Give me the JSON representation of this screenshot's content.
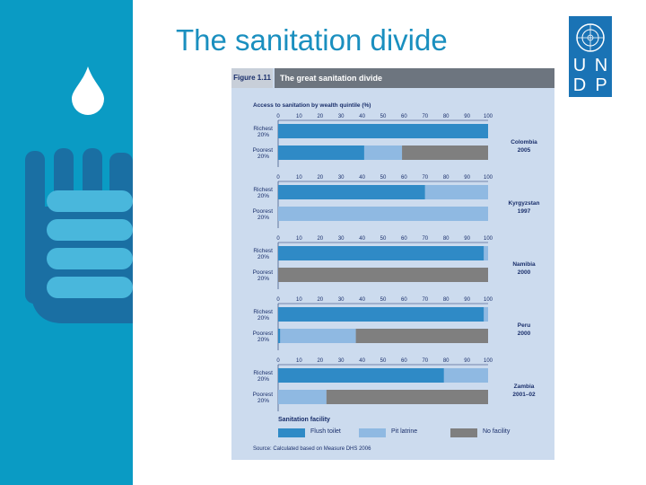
{
  "slide": {
    "title": "The sanitation divide"
  },
  "logo": {
    "letters": [
      "U",
      "N",
      "D",
      "P"
    ]
  },
  "figure": {
    "number": "Figure 1.11",
    "title": "The great sanitation divide",
    "source": "Source: Calculated based on Measure DHS 2006"
  },
  "colors": {
    "flush_toilet": "#2f8ac6",
    "pit_latrine": "#8fb9e2",
    "no_facility": "#7f7f7f",
    "band": "#0a9bc4",
    "title": "#1a8fbf"
  },
  "chart_data": {
    "type": "bar",
    "orientation": "horizontal",
    "stacked": true,
    "title": "Access to sanitation by wealth quintile (%)",
    "xlim": [
      0,
      100
    ],
    "ticks": [
      "0",
      "10",
      "20",
      "30",
      "40",
      "50",
      "60",
      "70",
      "80",
      "90",
      "100"
    ],
    "legend_title": "Sanitation facility",
    "legend": [
      {
        "key": "flush_toilet",
        "label": "Flush toilet"
      },
      {
        "key": "pit_latrine",
        "label": "Pit latrine"
      },
      {
        "key": "no_facility",
        "label": "No facility"
      }
    ],
    "groups": [
      {
        "country": "Colombia",
        "year": "2005",
        "rows": [
          {
            "label": [
              "Richest",
              "20%"
            ],
            "values": [
              100,
              0,
              0
            ]
          },
          {
            "label": [
              "Poorest",
              "20%"
            ],
            "values": [
              41,
              18,
              41
            ]
          }
        ]
      },
      {
        "country": "Kyrgyzstan",
        "year": "1997",
        "rows": [
          {
            "label": [
              "Richest",
              "20%"
            ],
            "values": [
              70,
              30,
              0
            ]
          },
          {
            "label": [
              "Poorest",
              "20%"
            ],
            "values": [
              0,
              100,
              0
            ]
          }
        ]
      },
      {
        "country": "Namibia",
        "year": "2000",
        "rows": [
          {
            "label": [
              "Richest",
              "20%"
            ],
            "values": [
              98,
              2,
              0
            ]
          },
          {
            "label": [
              "Poorest",
              "20%"
            ],
            "values": [
              0,
              0,
              100
            ]
          }
        ]
      },
      {
        "country": "Peru",
        "year": "2000",
        "rows": [
          {
            "label": [
              "Richest",
              "20%"
            ],
            "values": [
              98,
              2,
              0
            ]
          },
          {
            "label": [
              "Poorest",
              "20%"
            ],
            "values": [
              1,
              36,
              63
            ]
          }
        ]
      },
      {
        "country": "Zambia",
        "year": "2001–02",
        "rows": [
          {
            "label": [
              "Richest",
              "20%"
            ],
            "values": [
              79,
              21,
              0
            ]
          },
          {
            "label": [
              "Poorest",
              "20%"
            ],
            "values": [
              0,
              23,
              77
            ]
          }
        ]
      }
    ]
  }
}
